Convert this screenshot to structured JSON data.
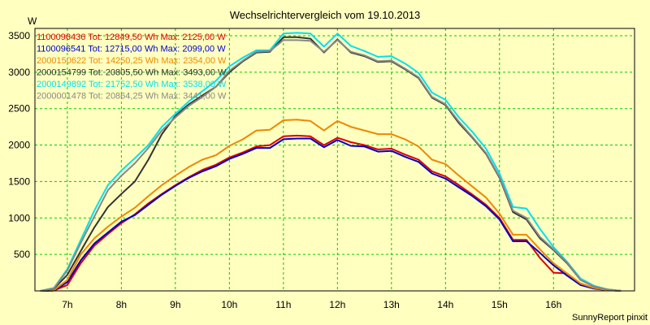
{
  "chart_data": {
    "type": "line",
    "title": "Wechselrichtervergleich vom 19.10.2013",
    "ylabel": "W",
    "xlabel": "",
    "footer": "SunnyReport pinxit",
    "ylim": [
      0,
      3600
    ],
    "xlim": [
      6.4,
      17.5
    ],
    "yticks": [
      500,
      1000,
      1500,
      2000,
      2500,
      3000,
      3500
    ],
    "xtick_labels": [
      "7h",
      "8h",
      "9h",
      "10h",
      "11h",
      "12h",
      "13h",
      "14h",
      "15h",
      "16h"
    ],
    "xtick_values": [
      7,
      8,
      9,
      10,
      11,
      12,
      13,
      14,
      15,
      16
    ],
    "grid": true,
    "colors": {
      "background": "#ffffc0",
      "grid": "#00cc00",
      "axis": "#000000"
    },
    "x": [
      6.5,
      6.75,
      7.0,
      7.25,
      7.5,
      7.75,
      8.0,
      8.25,
      8.5,
      8.75,
      9.0,
      9.25,
      9.5,
      9.75,
      10.0,
      10.25,
      10.5,
      10.75,
      11.0,
      11.25,
      11.5,
      11.75,
      12.0,
      12.25,
      12.5,
      12.75,
      13.0,
      13.25,
      13.5,
      13.75,
      14.0,
      14.25,
      14.5,
      14.75,
      15.0,
      15.25,
      15.5,
      15.75,
      16.0,
      16.25,
      16.5,
      16.75,
      17.0,
      17.25
    ],
    "series": [
      {
        "name": "1100096436",
        "label": "1100096436 Tot: 12849,50 Wh Max: 2125,00 W",
        "color": "#dd0000",
        "values": [
          0,
          5,
          80,
          380,
          620,
          780,
          930,
          1050,
          1200,
          1330,
          1450,
          1560,
          1660,
          1730,
          1830,
          1900,
          1980,
          2000,
          2120,
          2130,
          2120,
          2000,
          2100,
          2040,
          2000,
          1940,
          1950,
          1870,
          1800,
          1640,
          1570,
          1450,
          1320,
          1180,
          1000,
          700,
          700,
          450,
          250,
          240,
          100,
          40,
          10,
          0
        ]
      },
      {
        "name": "1100096541",
        "label": "1100096541 Tot: 12715,00 Wh Max: 2099,00 W",
        "color": "#0000cc",
        "values": [
          0,
          5,
          120,
          420,
          650,
          800,
          950,
          1040,
          1180,
          1320,
          1440,
          1550,
          1640,
          1710,
          1810,
          1880,
          1960,
          1960,
          2080,
          2090,
          2090,
          1970,
          2070,
          1990,
          1980,
          1910,
          1920,
          1840,
          1770,
          1610,
          1540,
          1420,
          1300,
          1160,
          980,
          680,
          680,
          520,
          350,
          210,
          80,
          30,
          10,
          0
        ]
      },
      {
        "name": "2000150622",
        "label": "2000150622 Tot: 14250,25 Wh Max: 2354,00 W",
        "color": "#ee8800",
        "values": [
          0,
          10,
          150,
          500,
          720,
          880,
          1020,
          1140,
          1300,
          1450,
          1580,
          1700,
          1800,
          1860,
          1990,
          2080,
          2200,
          2210,
          2340,
          2350,
          2330,
          2200,
          2330,
          2250,
          2200,
          2150,
          2150,
          2080,
          1980,
          1800,
          1740,
          1580,
          1430,
          1280,
          1060,
          770,
          770,
          570,
          380,
          240,
          100,
          40,
          10,
          0
        ]
      },
      {
        "name": "2000154799",
        "label": "2000154799 Tot: 20805,50 Wh Max: 3493,00 W",
        "color": "#333333",
        "values": [
          0,
          30,
          220,
          550,
          870,
          1150,
          1330,
          1500,
          1800,
          2150,
          2400,
          2560,
          2680,
          2800,
          3000,
          3150,
          3270,
          3280,
          3480,
          3480,
          3460,
          3270,
          3450,
          3270,
          3220,
          3140,
          3150,
          3040,
          2920,
          2650,
          2550,
          2300,
          2100,
          1880,
          1550,
          1080,
          980,
          720,
          560,
          380,
          150,
          60,
          20,
          0
        ]
      },
      {
        "name": "2000149892",
        "label": "2000149892 Tot: 21752,50 Wh Max: 3538,00 W",
        "color": "#00e0f0",
        "values": [
          0,
          40,
          300,
          700,
          1100,
          1450,
          1650,
          1820,
          2000,
          2250,
          2430,
          2600,
          2740,
          2880,
          3080,
          3200,
          3300,
          3300,
          3530,
          3540,
          3530,
          3350,
          3530,
          3360,
          3290,
          3210,
          3220,
          3120,
          2990,
          2720,
          2620,
          2380,
          2180,
          1950,
          1610,
          1150,
          1130,
          850,
          600,
          400,
          170,
          70,
          20,
          0
        ]
      },
      {
        "name": "2000001478",
        "label": "2000001478 Tot: 20864,25 Wh Max: 3441,00 W",
        "color": "#888888",
        "values": [
          0,
          35,
          280,
          660,
          1020,
          1380,
          1580,
          1750,
          1960,
          2200,
          2380,
          2540,
          2660,
          2800,
          3020,
          3160,
          3280,
          3290,
          3440,
          3440,
          3430,
          3280,
          3440,
          3280,
          3230,
          3150,
          3160,
          3050,
          2930,
          2660,
          2560,
          2320,
          2110,
          1890,
          1560,
          1100,
          1000,
          740,
          570,
          390,
          150,
          60,
          20,
          0
        ]
      }
    ]
  }
}
